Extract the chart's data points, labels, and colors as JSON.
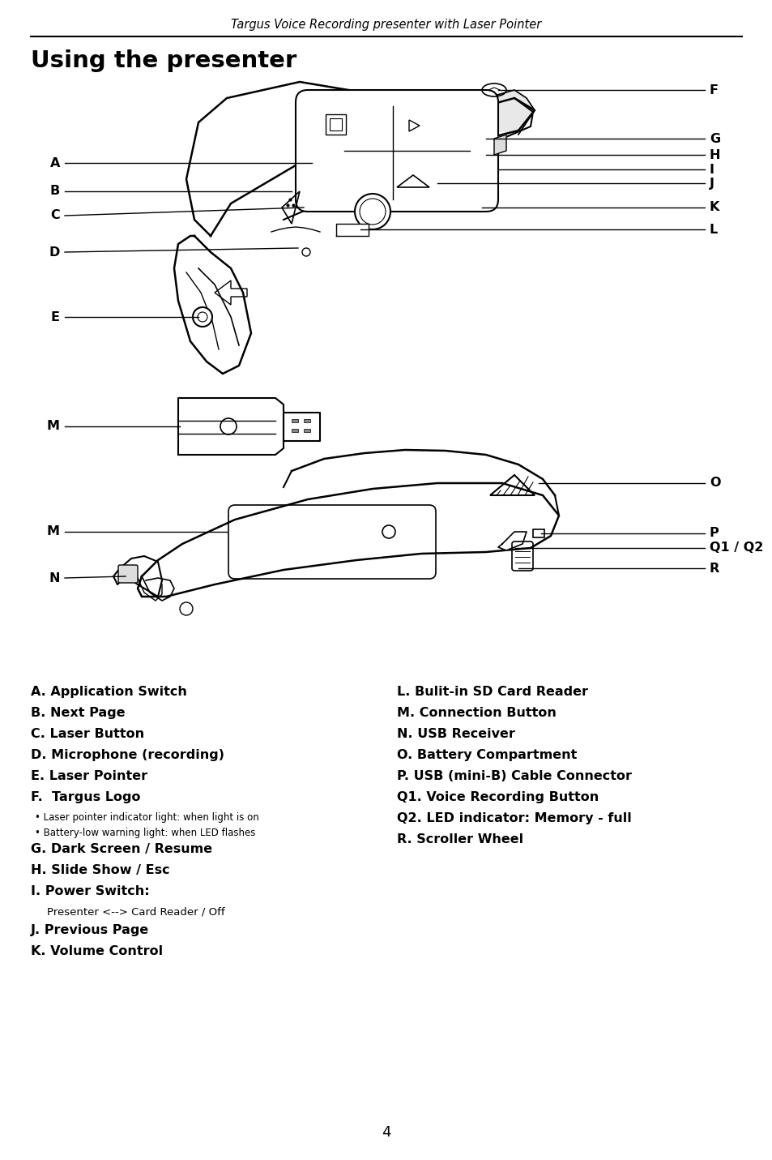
{
  "page_title": "Targus Voice Recording presenter with Laser Pointer",
  "section_title": "Using the presenter",
  "background_color": "#ffffff",
  "text_color": "#000000",
  "page_number": "4",
  "left_items": [
    {
      "text": "A. Application Switch",
      "bold": true,
      "size": 11.5,
      "indent": 0
    },
    {
      "text": "B. Next Page",
      "bold": true,
      "size": 11.5,
      "indent": 0
    },
    {
      "text": "C. Laser Button",
      "bold": true,
      "size": 11.5,
      "indent": 0
    },
    {
      "text": "D. Microphone (recording)",
      "bold": true,
      "size": 11.5,
      "indent": 0
    },
    {
      "text": "E. Laser Pointer",
      "bold": true,
      "size": 11.5,
      "indent": 0
    },
    {
      "text": "F.  Targus Logo",
      "bold": true,
      "size": 11.5,
      "indent": 0
    },
    {
      "text": "• Laser pointer indicator light: when light is on",
      "bold": false,
      "size": 8.5,
      "indent": 5
    },
    {
      "text": "• Battery-low warning light: when LED flashes",
      "bold": false,
      "size": 8.5,
      "indent": 5
    },
    {
      "text": "G. Dark Screen / Resume",
      "bold": true,
      "size": 11.5,
      "indent": 0
    },
    {
      "text": "H. Slide Show / Esc",
      "bold": true,
      "size": 11.5,
      "indent": 0
    },
    {
      "text": "I. Power Switch:",
      "bold": true,
      "size": 11.5,
      "indent": 0
    },
    {
      "text": "Presenter <--> Card Reader / Off",
      "bold": false,
      "size": 9.5,
      "indent": 20
    },
    {
      "text": "J. Previous Page",
      "bold": true,
      "size": 11.5,
      "indent": 0
    },
    {
      "text": "K. Volume Control",
      "bold": true,
      "size": 11.5,
      "indent": 0
    }
  ],
  "right_items": [
    {
      "text": "L. Bulit-in SD Card Reader",
      "bold": true,
      "size": 11.5,
      "indent": 0
    },
    {
      "text": "M. Connection Button",
      "bold": true,
      "size": 11.5,
      "indent": 0
    },
    {
      "text": "N. USB Receiver",
      "bold": true,
      "size": 11.5,
      "indent": 0
    },
    {
      "text": "O. Battery Compartment",
      "bold": true,
      "size": 11.5,
      "indent": 0
    },
    {
      "text": "P. USB (mini-B) Cable Connector",
      "bold": true,
      "size": 11.5,
      "indent": 0
    },
    {
      "text": "Q1. Voice Recording Button",
      "bold": true,
      "size": 11.5,
      "indent": 0
    },
    {
      "text": "Q2. LED indicator: Memory - full",
      "bold": true,
      "size": 11.5,
      "indent": 0
    },
    {
      "text": "R. Scroller Wheel",
      "bold": true,
      "size": 11.5,
      "indent": 0
    }
  ]
}
